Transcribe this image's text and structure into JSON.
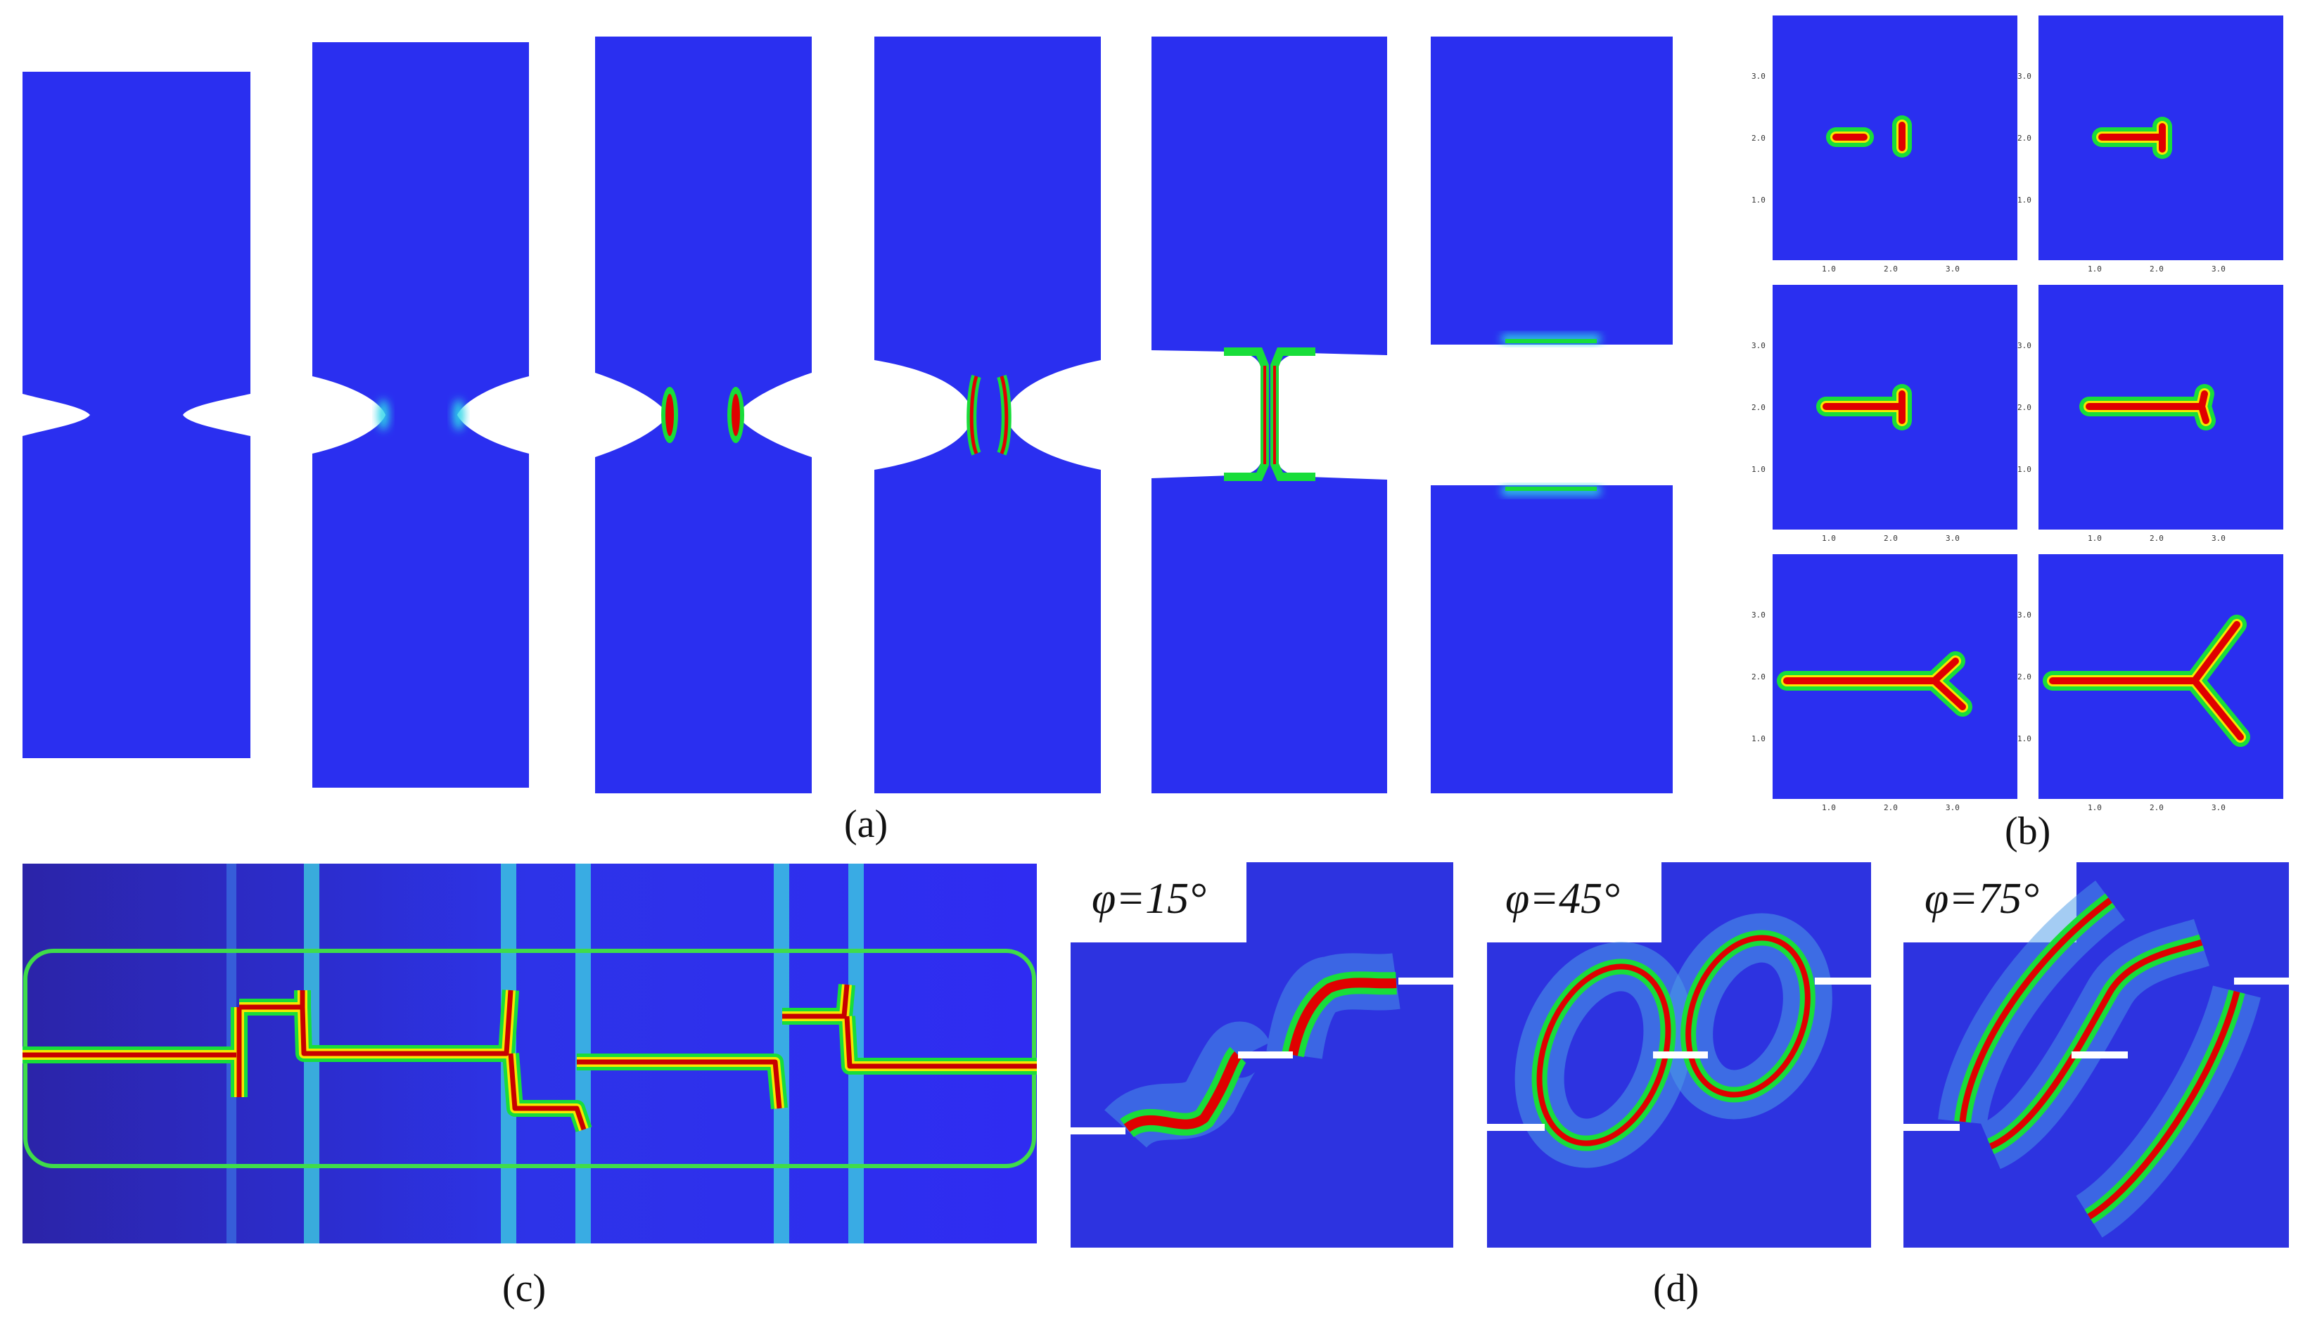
{
  "panels": {
    "a": {
      "label": "(a)"
    },
    "b": {
      "label": "(b)",
      "x_ticks": [
        "1.0",
        "2.0",
        "3.0"
      ],
      "y_ticks": [
        "3.0",
        "2.0",
        "1.0"
      ]
    },
    "c": {
      "label": "(c)"
    },
    "d": {
      "label": "(d)",
      "angles": [
        "φ=15°",
        "φ=45°",
        "φ=75°"
      ]
    }
  },
  "colors": {
    "field_blue": "#2a2ff0",
    "crack_red": "#e00000",
    "crack_yellow": "#f6e800",
    "crack_green": "#18dd3a",
    "crack_cyan": "#2fd6e8"
  }
}
